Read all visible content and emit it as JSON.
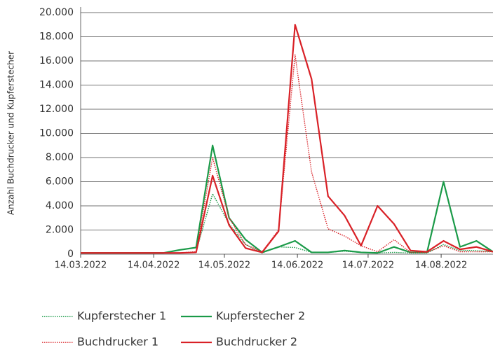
{
  "chart_data": {
    "type": "line",
    "y_label": "Anzahl Buchdrucker und Kupferstecher",
    "x": [
      "14.03.2022",
      "21.03.2022",
      "28.03.2022",
      "04.04.2022",
      "11.04.2022",
      "18.04.2022",
      "25.04.2022",
      "02.05.2022",
      "09.05.2022",
      "16.05.2022",
      "23.05.2022",
      "30.05.2022",
      "06.06.2022",
      "13.06.2022",
      "20.06.2022",
      "27.06.2022",
      "04.07.2022",
      "11.07.2022",
      "18.07.2022",
      "25.07.2022",
      "01.08.2022",
      "08.08.2022",
      "15.08.2022",
      "22.08.2022",
      "29.08.2022",
      "05.09.2022"
    ],
    "xlim": [
      "14.03.2022",
      "05.09.2022"
    ],
    "xticks": [
      "14.03.2022",
      "14.04.2022",
      "14.05.2022",
      "14.06.2022",
      "14.07.2022",
      "14.08.2022"
    ],
    "ylim": [
      0,
      20000
    ],
    "yticks": [
      0,
      {
        "value": 2000,
        "label": "2.000"
      },
      {
        "value": 4000,
        "label": "4.000"
      },
      {
        "value": 6000,
        "label": "6.000"
      },
      {
        "value": 8000,
        "label": "8.000"
      },
      {
        "value": 10000,
        "label": "10.000"
      },
      {
        "value": 12000,
        "label": "12.000"
      },
      {
        "value": 14000,
        "label": "14.000"
      },
      {
        "value": 16000,
        "label": "16.000"
      },
      {
        "value": 18000,
        "label": "18.000"
      },
      {
        "value": 20000,
        "label": "20.000"
      }
    ],
    "grid": true,
    "series": [
      {
        "name": "Kupferstecher 1",
        "color": "#1a9a48",
        "dash": "dotted",
        "values": [
          100,
          100,
          100,
          100,
          100,
          100,
          100,
          200,
          5000,
          2500,
          800,
          100,
          600,
          550,
          150,
          150,
          250,
          150,
          100,
          150,
          100,
          100,
          800,
          300,
          300,
          200
        ]
      },
      {
        "name": "Kupferstecher 2",
        "color": "#1a9a48",
        "dash": "solid",
        "values": [
          100,
          100,
          100,
          100,
          100,
          100,
          350,
          550,
          9000,
          3000,
          1200,
          150,
          600,
          1100,
          150,
          150,
          300,
          150,
          100,
          600,
          150,
          150,
          6000,
          600,
          1100,
          200
        ]
      },
      {
        "name": "Buchdrucker 1",
        "color": "#d92127",
        "dash": "dotted",
        "values": [
          100,
          100,
          100,
          100,
          100,
          100,
          100,
          200,
          8000,
          3000,
          800,
          200,
          2000,
          16500,
          6800,
          2100,
          1500,
          700,
          200,
          1200,
          150,
          150,
          700,
          200,
          200,
          200
        ]
      },
      {
        "name": "Buchdrucker 2",
        "color": "#d92127",
        "dash": "solid",
        "values": [
          100,
          100,
          100,
          100,
          100,
          100,
          100,
          150,
          6500,
          2400,
          500,
          150,
          1900,
          19000,
          14500,
          4800,
          3200,
          700,
          4000,
          2500,
          300,
          200,
          1100,
          400,
          600,
          200
        ]
      }
    ]
  }
}
